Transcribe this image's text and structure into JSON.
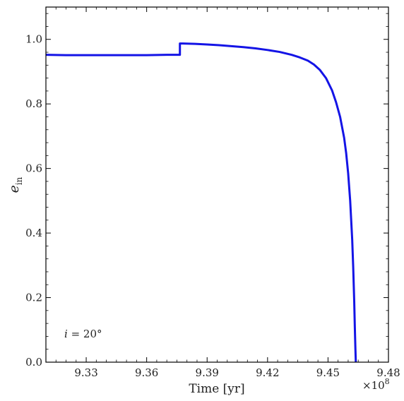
{
  "chart_data": {
    "type": "line",
    "title": "",
    "xlabel": "Time [yr]",
    "ylabel_main": "e",
    "ylabel_sub": "in",
    "x_offset_label": "×10",
    "x_offset_exponent": "8",
    "xlim": [
      9.31,
      9.48
    ],
    "ylim": [
      0.0,
      1.1
    ],
    "x_ticks": [
      9.33,
      9.36,
      9.39,
      9.42,
      9.45,
      9.48
    ],
    "x_tick_labels": [
      "9.33",
      "9.36",
      "9.39",
      "9.42",
      "9.45",
      "9.48"
    ],
    "y_ticks": [
      0.0,
      0.2,
      0.4,
      0.6,
      0.8,
      1.0
    ],
    "y_tick_labels": [
      "0.0",
      "0.2",
      "0.4",
      "0.6",
      "0.8",
      "1.0"
    ],
    "grid": false,
    "annotation": {
      "var": "i",
      "text": " = 20°",
      "position": "bottom-left"
    },
    "series": [
      {
        "color": "#1414e6",
        "x": [
          9.31,
          9.32,
          9.33,
          9.34,
          9.35,
          9.36,
          9.37,
          9.3765,
          9.3765,
          9.378,
          9.384,
          9.39,
          9.396,
          9.402,
          9.408,
          9.414,
          9.42,
          9.426,
          9.432,
          9.436,
          9.44,
          9.443,
          9.446,
          9.449,
          9.452,
          9.454,
          9.456,
          9.458,
          9.459,
          9.46,
          9.461,
          9.462,
          9.4625,
          9.463,
          9.4633,
          9.4636,
          9.4638
        ],
        "y": [
          0.952,
          0.951,
          0.951,
          0.951,
          0.951,
          0.951,
          0.952,
          0.952,
          0.987,
          0.987,
          0.986,
          0.984,
          0.982,
          0.979,
          0.976,
          0.972,
          0.967,
          0.961,
          0.952,
          0.944,
          0.934,
          0.922,
          0.905,
          0.88,
          0.842,
          0.805,
          0.76,
          0.695,
          0.648,
          0.585,
          0.5,
          0.38,
          0.295,
          0.19,
          0.11,
          0.04,
          0.0
        ]
      }
    ]
  }
}
